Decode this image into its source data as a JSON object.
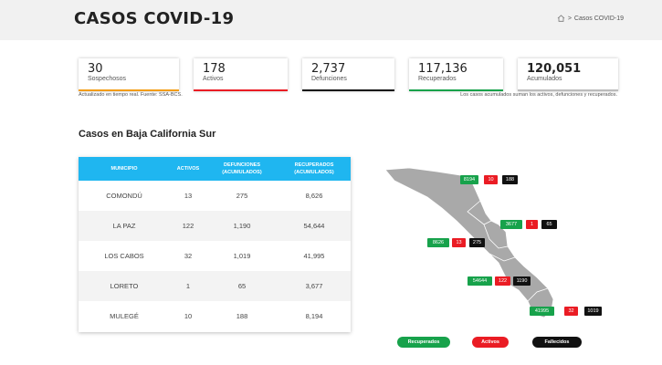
{
  "header": {
    "title": "CASOS COVID-19",
    "breadcrumb_sep": ">",
    "breadcrumb_current": "Casos COVID-19"
  },
  "cards": [
    {
      "value": "30",
      "label": "Sospechosos",
      "color": "#f39c12"
    },
    {
      "value": "178",
      "label": "Activos",
      "color": "#ea1c24"
    },
    {
      "value": "2,737",
      "label": "Defunciones",
      "color": "#111111"
    },
    {
      "value": "117,136",
      "label": "Recuperados",
      "color": "#17a24b"
    },
    {
      "value": "120,051",
      "label": "Acumulados",
      "color": "#bbbbbb"
    }
  ],
  "notes": {
    "left": "Actualizado en tiempo real. Fuente: SSA-BCS.",
    "right": "Los casos acumulados suman los activos, defunciones y recuperados."
  },
  "section_title": "Casos en Baja California Sur",
  "table": {
    "headers": [
      "MUNICIPIO",
      "ACTIVOS",
      "DEFUNCIONES (ACUMULADOS)",
      "RECUPERADOS (ACUMULADOS)"
    ],
    "rows": [
      [
        "COMONDÚ",
        "13",
        "275",
        "8,626"
      ],
      [
        "LA PAZ",
        "122",
        "1,190",
        "54,644"
      ],
      [
        "LOS CABOS",
        "32",
        "1,019",
        "41,995"
      ],
      [
        "LORETO",
        "1",
        "65",
        "3,677"
      ],
      [
        "MULEGÉ",
        "10",
        "188",
        "8,194"
      ]
    ]
  },
  "map": {
    "mulege": {
      "recuperados": "8194",
      "activos": "10",
      "fallecidos": "188"
    },
    "loreto": {
      "recuperados": "3677",
      "activos": "1",
      "fallecidos": "65"
    },
    "comondu": {
      "recuperados": "8626",
      "activos": "13",
      "fallecidos": "275"
    },
    "la_paz": {
      "recuperados": "54644",
      "activos": "122",
      "fallecidos": "1190"
    },
    "los_cabos": {
      "recuperados": "41995",
      "activos": "32",
      "fallecidos": "1019"
    }
  },
  "legend": {
    "recuperados": "Recuperados",
    "activos": "Activos",
    "fallecidos": "Fallecidos"
  },
  "colors": {
    "accent": "#1fb6f0",
    "green": "#17a24b",
    "red": "#ea1c24",
    "black": "#111111",
    "map_fill": "#a9a9a9"
  }
}
